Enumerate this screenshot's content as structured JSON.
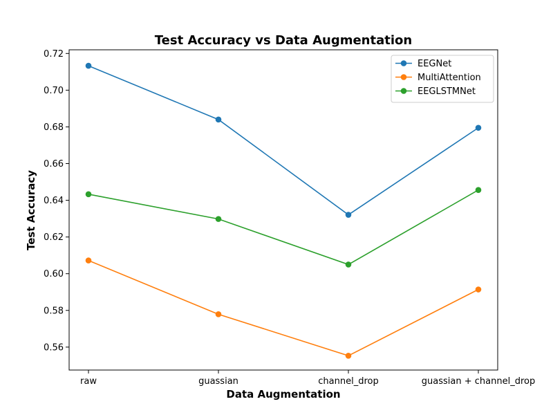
{
  "chart_data": {
    "type": "line",
    "title": "Test Accuracy vs Data Augmentation",
    "xlabel": "Data Augmentation",
    "ylabel": "Test Accuracy",
    "categories": [
      "raw",
      "guassian",
      "channel_drop",
      "guassian + channel_drop"
    ],
    "ylim": [
      0.5475,
      0.722
    ],
    "yticks": [
      "0.56",
      "0.58",
      "0.60",
      "0.62",
      "0.64",
      "0.66",
      "0.68",
      "0.70",
      "0.72"
    ],
    "grid": false,
    "legend_position": "top-right",
    "series": [
      {
        "name": "EEGNet",
        "color": "#1f77b4",
        "marker": "circle",
        "values": [
          0.7133,
          0.684,
          0.6321,
          0.6795
        ]
      },
      {
        "name": "MultiAttention",
        "color": "#ff7f0e",
        "marker": "circle",
        "values": [
          0.6072,
          0.5779,
          0.5553,
          0.5914
        ]
      },
      {
        "name": "EEGLSTMNet",
        "color": "#2ca02c",
        "marker": "circle",
        "values": [
          0.6433,
          0.6298,
          0.605,
          0.6456
        ]
      }
    ]
  }
}
